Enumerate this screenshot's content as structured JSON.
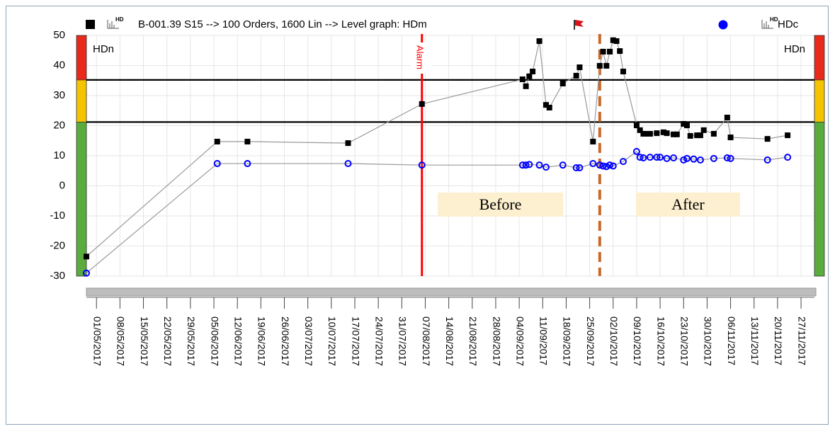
{
  "chart_data": {
    "type": "line",
    "title": "B-001.39 S15 --> 100 Orders, 1600 Lin --> Level graph: HDm",
    "icon_label": "HD",
    "axis_label_left": "HDn",
    "axis_label_right": "HDn",
    "xlim": [
      "28/04/2017",
      "01/12/2017"
    ],
    "ylim": [
      -30,
      50
    ],
    "yticks": [
      -30,
      -20,
      -10,
      0,
      10,
      20,
      30,
      40,
      50
    ],
    "xticks": [
      "01/05/2017",
      "08/05/2017",
      "15/05/2017",
      "22/05/2017",
      "29/05/2017",
      "05/06/2017",
      "12/06/2017",
      "19/06/2017",
      "26/06/2017",
      "03/07/2017",
      "10/07/2017",
      "17/07/2017",
      "24/07/2017",
      "31/07/2017",
      "07/08/2017",
      "14/08/2017",
      "21/08/2017",
      "28/08/2017",
      "04/09/2017",
      "11/09/2017",
      "18/09/2017",
      "25/09/2017",
      "02/10/2017",
      "09/10/2017",
      "16/10/2017",
      "23/10/2017",
      "30/10/2017",
      "06/11/2017",
      "13/11/2017",
      "20/11/2017",
      "27/11/2017"
    ],
    "grid": true,
    "thresholds": [
      35.2,
      21.2
    ],
    "zones": [
      {
        "from": 35.2,
        "to": 50,
        "color": "#e8291c"
      },
      {
        "from": 21.2,
        "to": 35.2,
        "color": "#f5c400"
      },
      {
        "from": -30,
        "to": 21.2,
        "color": "#5aad3c"
      }
    ],
    "annotations": [
      {
        "label": "Alarm",
        "x": "06/08/2017",
        "color": "#ff0000",
        "style": "solid"
      },
      {
        "x": "28/09/2017",
        "color": "#c8692a",
        "style": "dashed"
      }
    ],
    "text_boxes": [
      "Before",
      "After"
    ],
    "series": [
      {
        "name": "HDm",
        "color": "#000000",
        "marker": "square",
        "x": [
          "28/04/2017",
          "06/06/2017",
          "15/06/2017",
          "15/07/2017",
          "06/08/2017",
          "05/09/2017",
          "06/09/2017",
          "07/09/2017",
          "08/09/2017",
          "10/09/2017",
          "12/09/2017",
          "13/09/2017",
          "17/09/2017",
          "21/09/2017",
          "22/09/2017",
          "26/09/2017",
          "28/09/2017",
          "29/09/2017",
          "30/09/2017",
          "01/10/2017",
          "02/10/2017",
          "03/10/2017",
          "04/10/2017",
          "05/10/2017",
          "09/10/2017",
          "10/10/2017",
          "11/10/2017",
          "12/10/2017",
          "13/10/2017",
          "15/10/2017",
          "17/10/2017",
          "18/10/2017",
          "20/10/2017",
          "21/10/2017",
          "23/10/2017",
          "24/10/2017",
          "25/10/2017",
          "27/10/2017",
          "28/10/2017",
          "29/10/2017",
          "01/11/2017",
          "05/11/2017",
          "06/11/2017",
          "17/11/2017",
          "23/11/2017"
        ],
        "values": [
          -23.5,
          14.7,
          14.7,
          14.2,
          27.2,
          35.4,
          33.1,
          36.4,
          38,
          48.1,
          26.9,
          26,
          34,
          36.6,
          39.4,
          14.7,
          39.9,
          44.6,
          39.9,
          44.6,
          48.4,
          48.1,
          44.8,
          38,
          20.1,
          18.5,
          17.3,
          17.3,
          17.3,
          17.5,
          17.8,
          17.5,
          17.1,
          17.1,
          20.6,
          20.1,
          16.6,
          16.8,
          16.8,
          18.5,
          17.3,
          22.7,
          16.1,
          15.6,
          16.8
        ]
      },
      {
        "name": "HDc",
        "color": "#0000ff",
        "marker": "circle",
        "x": [
          "28/04/2017",
          "06/06/2017",
          "15/06/2017",
          "15/07/2017",
          "06/08/2017",
          "05/09/2017",
          "06/09/2017",
          "07/09/2017",
          "10/09/2017",
          "12/09/2017",
          "17/09/2017",
          "21/09/2017",
          "22/09/2017",
          "26/09/2017",
          "28/09/2017",
          "29/09/2017",
          "30/09/2017",
          "01/10/2017",
          "02/10/2017",
          "05/10/2017",
          "09/10/2017",
          "10/10/2017",
          "11/10/2017",
          "13/10/2017",
          "15/10/2017",
          "16/10/2017",
          "18/10/2017",
          "20/10/2017",
          "23/10/2017",
          "24/10/2017",
          "26/10/2017",
          "28/10/2017",
          "01/11/2017",
          "05/11/2017",
          "06/11/2017",
          "17/11/2017",
          "23/11/2017"
        ],
        "values": [
          -29,
          7.4,
          7.4,
          7.4,
          6.9,
          6.9,
          6.9,
          7.1,
          6.9,
          6.2,
          6.9,
          6,
          6,
          7.4,
          6.9,
          6.6,
          6.4,
          6.9,
          6.6,
          8.1,
          11.4,
          9.5,
          9.3,
          9.5,
          9.5,
          9.5,
          9.1,
          9.3,
          8.6,
          9.1,
          8.9,
          8.6,
          9.1,
          9.3,
          9.1,
          8.6,
          9.5
        ]
      }
    ]
  }
}
